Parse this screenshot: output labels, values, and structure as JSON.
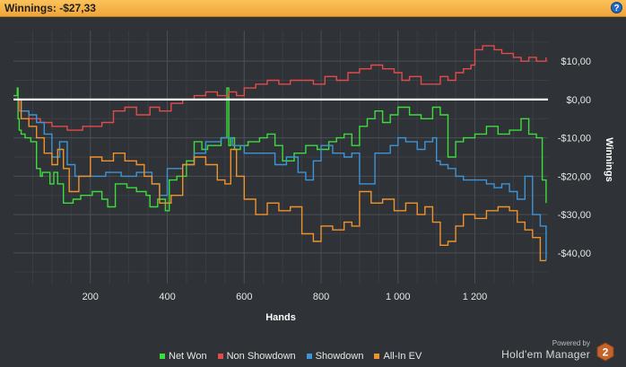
{
  "header": {
    "title": "Winnings: -$27,33",
    "help_label": "?"
  },
  "colors": {
    "net_won": "#3ddc3d",
    "non_showdown": "#e24b4b",
    "showdown": "#3d94d6",
    "all_in_ev": "#f0922a",
    "zero_line": "#ffffff"
  },
  "chart_data": {
    "type": "line",
    "xlabel": "Hands",
    "ylabel": "Winnings",
    "xlim": [
      0,
      1390
    ],
    "ylim": [
      -48,
      18
    ],
    "x_ticks": [
      {
        "value": 200,
        "label": "200"
      },
      {
        "value": 400,
        "label": "400"
      },
      {
        "value": 600,
        "label": "600"
      },
      {
        "value": 800,
        "label": "800"
      },
      {
        "value": 1000,
        "label": "1 000"
      },
      {
        "value": 1200,
        "label": "1 200"
      }
    ],
    "y_ticks": [
      {
        "value": 10,
        "label": "$10,00"
      },
      {
        "value": 0,
        "label": "$0,00"
      },
      {
        "value": -10,
        "label": "-$10,00"
      },
      {
        "value": -20,
        "label": "-$20,00"
      },
      {
        "value": -30,
        "label": "-$30,00"
      },
      {
        "value": -40,
        "label": "-$40,00"
      }
    ],
    "grid": true,
    "legend_position": "bottom",
    "series": [
      {
        "name": "Net Won",
        "color_key": "net_won",
        "x": [
          0,
          10,
          12,
          15,
          20,
          30,
          45,
          60,
          70,
          75,
          95,
          105,
          115,
          130,
          155,
          175,
          205,
          230,
          245,
          265,
          295,
          320,
          345,
          355,
          375,
          395,
          405,
          425,
          450,
          470,
          490,
          505,
          525,
          540,
          555,
          560,
          565,
          575,
          590,
          610,
          640,
          660,
          680,
          700,
          730,
          760,
          790,
          820,
          840,
          860,
          880,
          900,
          920,
          940,
          960,
          980,
          1000,
          1030,
          1060,
          1090,
          1110,
          1130,
          1150,
          1170,
          1200,
          1230,
          1260,
          1290,
          1320,
          1340,
          1360,
          1375,
          1385
        ],
        "y": [
          1,
          3,
          -5,
          -8,
          -9,
          -10,
          -11,
          -18,
          -20,
          -19,
          -22,
          -19,
          -22,
          -27,
          -26,
          -25,
          -24,
          -26,
          -28,
          -22,
          -23,
          -24,
          -25,
          -28,
          -26,
          -29,
          -21,
          -20,
          -16,
          -11,
          -13,
          -12,
          -12,
          -10,
          3,
          -12,
          -10,
          -13,
          -12,
          -11,
          -10,
          -9,
          -12,
          -16,
          -14,
          -12,
          -13,
          -11,
          -10,
          -9,
          -12,
          -7,
          -5,
          -3,
          -6,
          -4,
          -2,
          -4,
          -5,
          -2,
          -4,
          -15,
          -11,
          -10,
          -9,
          -7,
          -9,
          -8,
          -5,
          -9,
          -10,
          -21,
          -27
        ]
      },
      {
        "name": "Non Showdown",
        "color_key": "non_showdown",
        "x": [
          0,
          15,
          40,
          70,
          100,
          140,
          180,
          230,
          260,
          290,
          320,
          355,
          380,
          410,
          440,
          470,
          500,
          530,
          560,
          580,
          600,
          630,
          660,
          690,
          720,
          750,
          780,
          810,
          840,
          870,
          900,
          930,
          960,
          990,
          1010,
          1030,
          1060,
          1090,
          1110,
          1130,
          1150,
          1170,
          1190,
          1200,
          1220,
          1250,
          1270,
          1300,
          1320,
          1340,
          1360,
          1385
        ],
        "y": [
          0,
          -3,
          -5,
          -6,
          -7,
          -8,
          -7,
          -6,
          -3,
          -2,
          -4,
          -2,
          -3,
          -1,
          0,
          1,
          2,
          1,
          2,
          1,
          3,
          4,
          5,
          4,
          5,
          5,
          4,
          6,
          5,
          7,
          8,
          9,
          8,
          7,
          5,
          6,
          4,
          4,
          6,
          5,
          7,
          8,
          9,
          13,
          14,
          13,
          12,
          11,
          10,
          11,
          10,
          11
        ]
      },
      {
        "name": "Showdown",
        "color_key": "showdown",
        "x": [
          0,
          20,
          40,
          60,
          80,
          100,
          120,
          140,
          160,
          200,
          240,
          280,
          320,
          360,
          380,
          400,
          440,
          470,
          500,
          540,
          570,
          600,
          640,
          680,
          710,
          740,
          760,
          780,
          800,
          830,
          860,
          880,
          900,
          940,
          980,
          1000,
          1020,
          1050,
          1070,
          1090,
          1100,
          1110,
          1130,
          1150,
          1170,
          1200,
          1230,
          1250,
          1270,
          1290,
          1310,
          1330,
          1350,
          1370,
          1385
        ],
        "y": [
          0,
          -3,
          -4,
          -6,
          -9,
          -15,
          -11,
          -17,
          -20,
          -20,
          -19,
          -20,
          -19,
          -22,
          -25,
          -18,
          -17,
          -14,
          -11,
          -10,
          -12,
          -14,
          -14,
          -17,
          -15,
          -19,
          -21,
          -16,
          -12,
          -14,
          -15,
          -14,
          -22,
          -14,
          -12,
          -10,
          -11,
          -13,
          -11,
          -10,
          -16,
          -17,
          -18,
          -20,
          -21,
          -21,
          -22,
          -23,
          -22,
          -24,
          -26,
          -20,
          -30,
          -33,
          -42
        ]
      },
      {
        "name": "All-In EV",
        "color_key": "all_in_ev",
        "x": [
          0,
          20,
          40,
          60,
          80,
          100,
          115,
          130,
          145,
          170,
          200,
          230,
          260,
          290,
          320,
          340,
          360,
          380,
          410,
          440,
          470,
          500,
          530,
          550,
          565,
          580,
          600,
          630,
          660,
          690,
          720,
          750,
          780,
          800,
          830,
          860,
          880,
          900,
          930,
          960,
          990,
          1020,
          1050,
          1070,
          1090,
          1110,
          1130,
          1150,
          1170,
          1200,
          1230,
          1260,
          1290,
          1310,
          1330,
          1350,
          1370,
          1385
        ],
        "y": [
          0,
          -5,
          -7,
          -10,
          -14,
          -17,
          -13,
          -18,
          -24,
          -20,
          -15,
          -16,
          -14,
          -16,
          -17,
          -20,
          -22,
          -27,
          -25,
          -17,
          -15,
          -17,
          -21,
          -22,
          -13,
          -20,
          -26,
          -30,
          -27,
          -29,
          -28,
          -35,
          -37,
          -33,
          -34,
          -32,
          -33,
          -24,
          -27,
          -26,
          -29,
          -27,
          -30,
          -28,
          -32,
          -38,
          -37,
          -33,
          -30,
          -31,
          -29,
          -28,
          -29,
          -32,
          -34,
          -36,
          -42,
          -42
        ]
      }
    ]
  },
  "legend": [
    {
      "label": "Net Won",
      "color_key": "net_won"
    },
    {
      "label": "Non Showdown",
      "color_key": "non_showdown"
    },
    {
      "label": "Showdown",
      "color_key": "showdown"
    },
    {
      "label": "All-In EV",
      "color_key": "all_in_ev"
    }
  ],
  "brand": {
    "powered_by": "Powered by",
    "name": "Hold'em Manager",
    "badge": "2"
  }
}
